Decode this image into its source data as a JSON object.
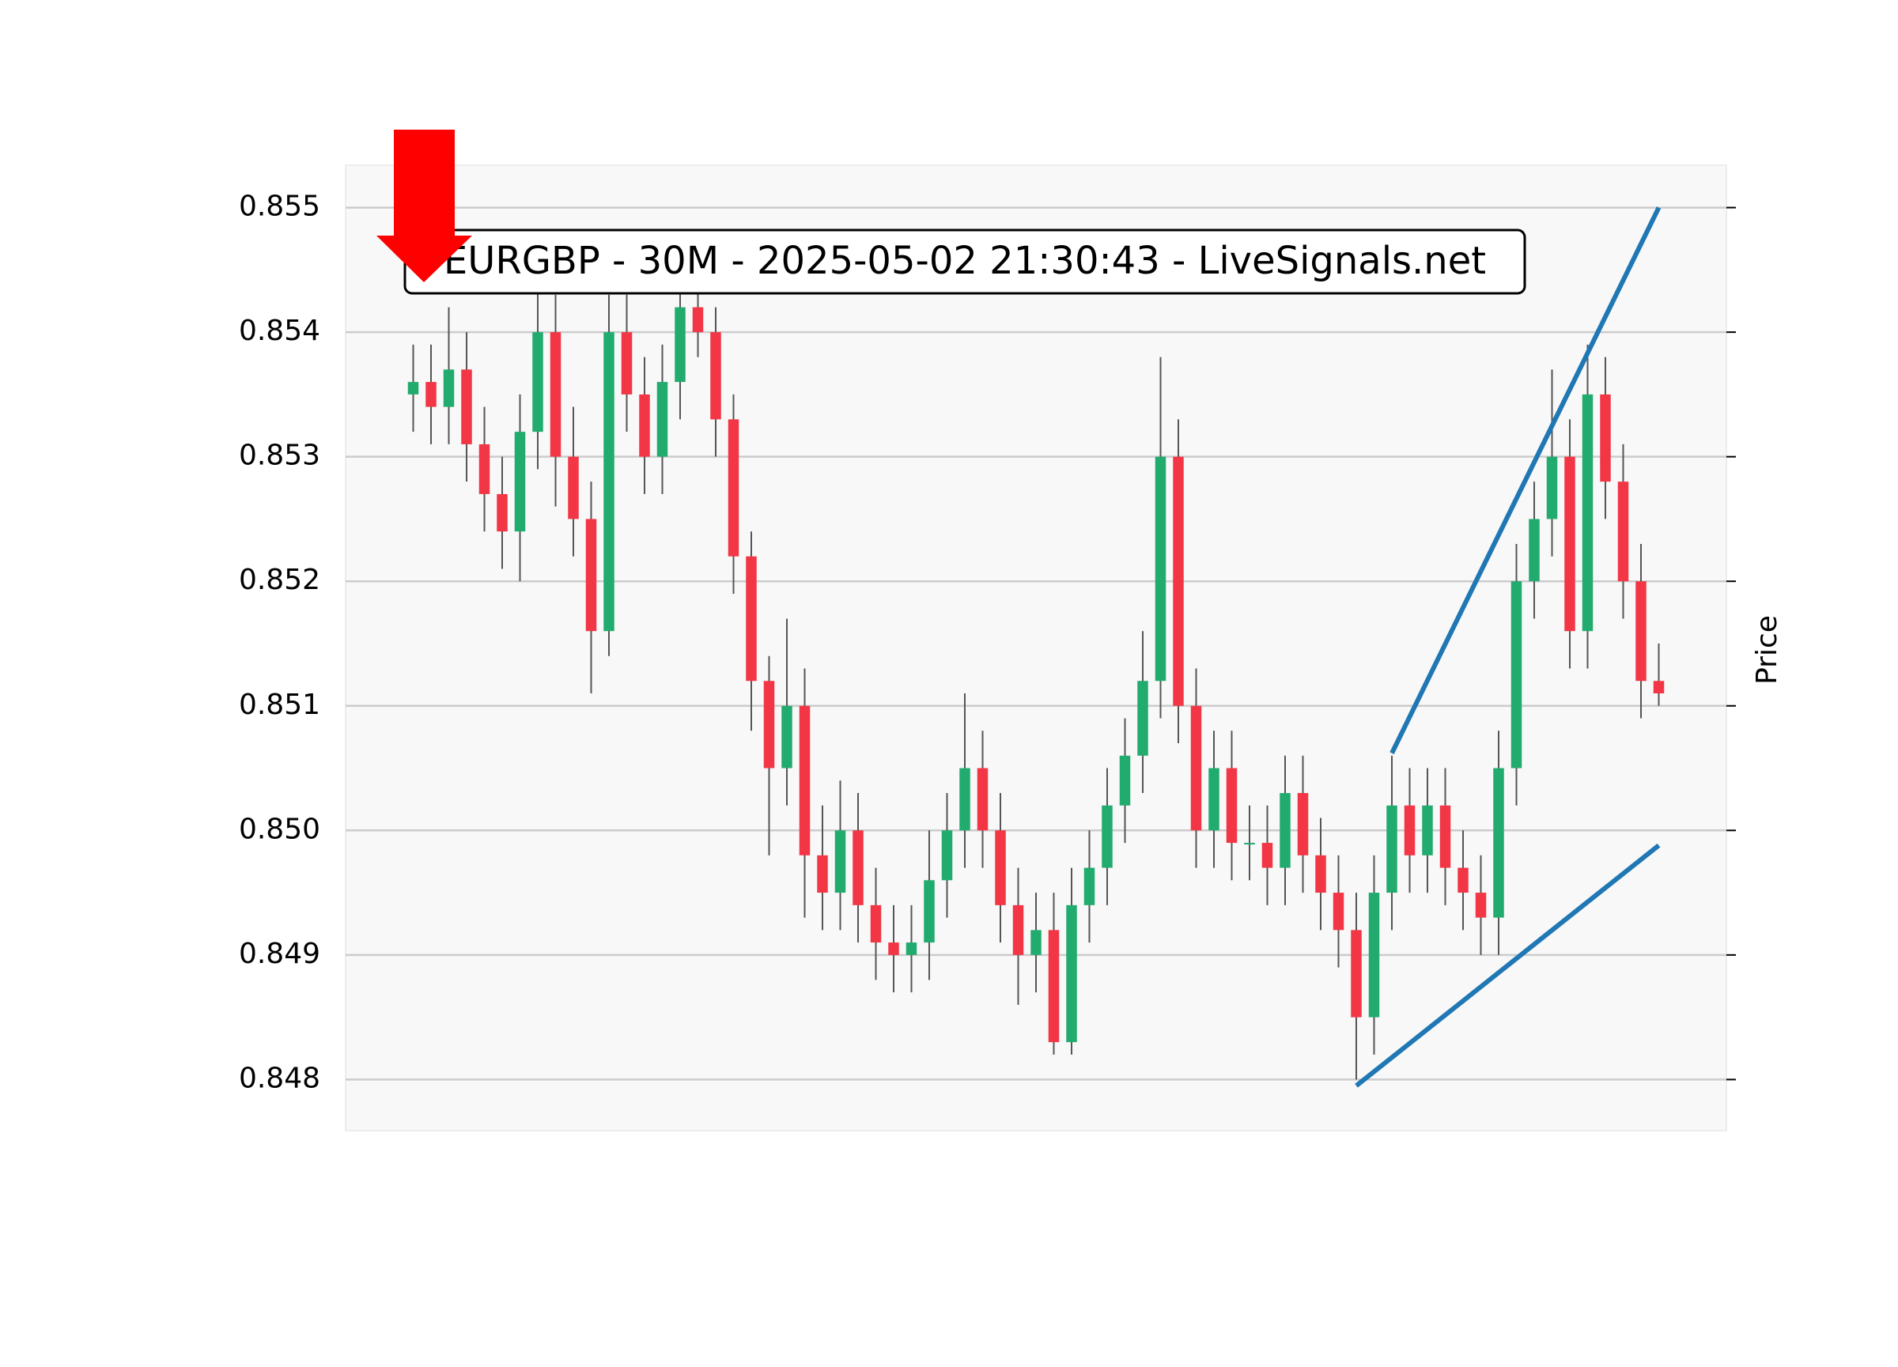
{
  "chart_data": {
    "type": "candlestick",
    "title": "EURGBP - 30M - 2025-05-02 21:30:43 - LiveSignals.net",
    "ylabel": "Price",
    "ylim": [
      0.84759,
      0.85534
    ],
    "yticks": [
      {
        "value": 0.848,
        "label": "0.848"
      },
      {
        "value": 0.849,
        "label": "0.849"
      },
      {
        "value": 0.85,
        "label": "0.850"
      },
      {
        "value": 0.851,
        "label": "0.851"
      },
      {
        "value": 0.852,
        "label": "0.852"
      },
      {
        "value": 0.853,
        "label": "0.853"
      },
      {
        "value": 0.854,
        "label": "0.854"
      },
      {
        "value": 0.855,
        "label": "0.855"
      }
    ],
    "grid": true,
    "up_color": "#22ab6e",
    "down_color": "#f23645",
    "wick_color": "#555555",
    "open": [
      0.8535,
      0.8536,
      0.8534,
      0.8537,
      0.8531,
      0.8527,
      0.8524,
      0.8532,
      0.854,
      0.853,
      0.8525,
      0.8516,
      0.854,
      0.8535,
      0.853,
      0.8536,
      0.8542,
      0.854,
      0.8533,
      0.8522,
      0.8512,
      0.8505,
      0.851,
      0.8498,
      0.8495,
      0.85,
      0.8494,
      0.8491,
      0.849,
      0.8491,
      0.8496,
      0.85,
      0.8505,
      0.85,
      0.8494,
      0.849,
      0.8492,
      0.8483,
      0.8494,
      0.8497,
      0.8502,
      0.8506,
      0.8512,
      0.853,
      0.851,
      0.85,
      0.8505,
      0.8499,
      0.8499,
      0.8497,
      0.8503,
      0.8498,
      0.8495,
      0.8492,
      0.8485,
      0.8495,
      0.8502,
      0.8498,
      0.8502,
      0.8497,
      0.8495,
      0.8493,
      0.8505,
      0.852,
      0.8525,
      0.853,
      0.8516,
      0.8535,
      0.8528,
      0.852,
      0.8512
    ],
    "high": [
      0.8539,
      0.8539,
      0.8542,
      0.854,
      0.8534,
      0.853,
      0.8535,
      0.8544,
      0.8543,
      0.8534,
      0.8528,
      0.8543,
      0.8543,
      0.8538,
      0.8539,
      0.8545,
      0.8545,
      0.8542,
      0.8535,
      0.8524,
      0.8514,
      0.8517,
      0.8513,
      0.8502,
      0.8504,
      0.8503,
      0.8497,
      0.8494,
      0.8494,
      0.85,
      0.8503,
      0.8511,
      0.8508,
      0.8503,
      0.8497,
      0.8495,
      0.8495,
      0.8497,
      0.85,
      0.8505,
      0.8509,
      0.8516,
      0.8538,
      0.8533,
      0.8513,
      0.8508,
      0.8508,
      0.8502,
      0.8502,
      0.8506,
      0.8506,
      0.8501,
      0.8498,
      0.8495,
      0.8498,
      0.8506,
      0.8505,
      0.8505,
      0.8505,
      0.85,
      0.8498,
      0.8508,
      0.8523,
      0.8528,
      0.8537,
      0.8533,
      0.8539,
      0.8538,
      0.8531,
      0.8523,
      0.8515
    ],
    "low": [
      0.8532,
      0.8531,
      0.8531,
      0.8528,
      0.8524,
      0.8521,
      0.852,
      0.8529,
      0.8526,
      0.8522,
      0.8511,
      0.8514,
      0.8532,
      0.8527,
      0.8527,
      0.8533,
      0.8538,
      0.853,
      0.8519,
      0.8508,
      0.8498,
      0.8502,
      0.8493,
      0.8492,
      0.8492,
      0.8491,
      0.8488,
      0.8487,
      0.8487,
      0.8488,
      0.8493,
      0.8497,
      0.8497,
      0.8491,
      0.8486,
      0.8487,
      0.8482,
      0.8482,
      0.8491,
      0.8494,
      0.8499,
      0.8503,
      0.8509,
      0.8507,
      0.8497,
      0.8497,
      0.8496,
      0.8496,
      0.8494,
      0.8494,
      0.8495,
      0.8492,
      0.8489,
      0.848,
      0.8482,
      0.8492,
      0.8495,
      0.8495,
      0.8494,
      0.8492,
      0.849,
      0.849,
      0.8502,
      0.8517,
      0.8522,
      0.8513,
      0.8513,
      0.8525,
      0.8517,
      0.8509,
      0.851
    ],
    "close": [
      0.8536,
      0.8534,
      0.8537,
      0.8531,
      0.8527,
      0.8524,
      0.8532,
      0.854,
      0.853,
      0.8525,
      0.8516,
      0.854,
      0.8535,
      0.853,
      0.8536,
      0.8542,
      0.854,
      0.8533,
      0.8522,
      0.8512,
      0.8505,
      0.851,
      0.8498,
      0.8495,
      0.85,
      0.8494,
      0.8491,
      0.849,
      0.8491,
      0.8496,
      0.85,
      0.8505,
      0.85,
      0.8494,
      0.849,
      0.8492,
      0.8483,
      0.8494,
      0.8497,
      0.8502,
      0.8506,
      0.8512,
      0.853,
      0.851,
      0.85,
      0.8505,
      0.8499,
      0.8499,
      0.8497,
      0.8503,
      0.8498,
      0.8495,
      0.8492,
      0.8485,
      0.8495,
      0.8502,
      0.8498,
      0.8502,
      0.8497,
      0.8495,
      0.8493,
      0.8505,
      0.852,
      0.8525,
      0.853,
      0.8516,
      0.8535,
      0.8528,
      0.852,
      0.8512,
      0.8511
    ],
    "trend_lines": [
      {
        "x": [
          55,
          70
        ],
        "y": [
          0.85062,
          0.855
        ],
        "color": "#1f77b4"
      },
      {
        "x": [
          53,
          70
        ],
        "y": [
          0.84795,
          0.84988
        ],
        "color": "#1f77b4"
      }
    ]
  }
}
